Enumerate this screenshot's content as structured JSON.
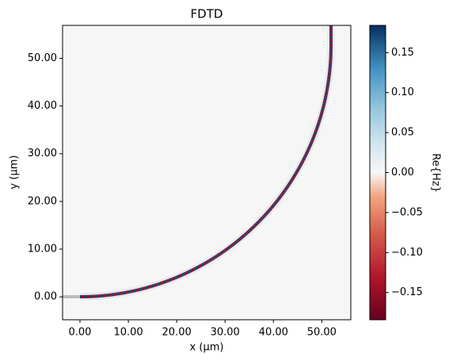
{
  "chart_data": {
    "type": "heatmap",
    "title": "FDTD",
    "x_label": "x (µm)",
    "y_label": "y (µm)",
    "xlim": [
      -3.6,
      56.0
    ],
    "ylim": [
      -4.8,
      56.9
    ],
    "xticks": [
      {
        "value": 0,
        "label": "0.00"
      },
      {
        "value": 10,
        "label": "10.00"
      },
      {
        "value": 20,
        "label": "20.00"
      },
      {
        "value": 30,
        "label": "30.00"
      },
      {
        "value": 40,
        "label": "40.00"
      },
      {
        "value": 50,
        "label": "50.00"
      }
    ],
    "yticks": [
      {
        "value": 0,
        "label": "0.00"
      },
      {
        "value": 10,
        "label": "10.00"
      },
      {
        "value": 20,
        "label": "20.00"
      },
      {
        "value": 30,
        "label": "30.00"
      },
      {
        "value": 40,
        "label": "40.00"
      },
      {
        "value": 50,
        "label": "50.00"
      }
    ],
    "colorbar": {
      "label": "Re{Hz}",
      "lim": [
        -0.184,
        0.184
      ],
      "ticks": [
        {
          "value": -0.15,
          "label": "−0.15"
        },
        {
          "value": -0.1,
          "label": "−0.10"
        },
        {
          "value": -0.05,
          "label": "−0.05"
        },
        {
          "value": 0,
          "label": "0.00"
        },
        {
          "value": 0.05,
          "label": "0.05"
        },
        {
          "value": 0.1,
          "label": "0.10"
        },
        {
          "value": 0.15,
          "label": "0.15"
        }
      ]
    }
  }
}
